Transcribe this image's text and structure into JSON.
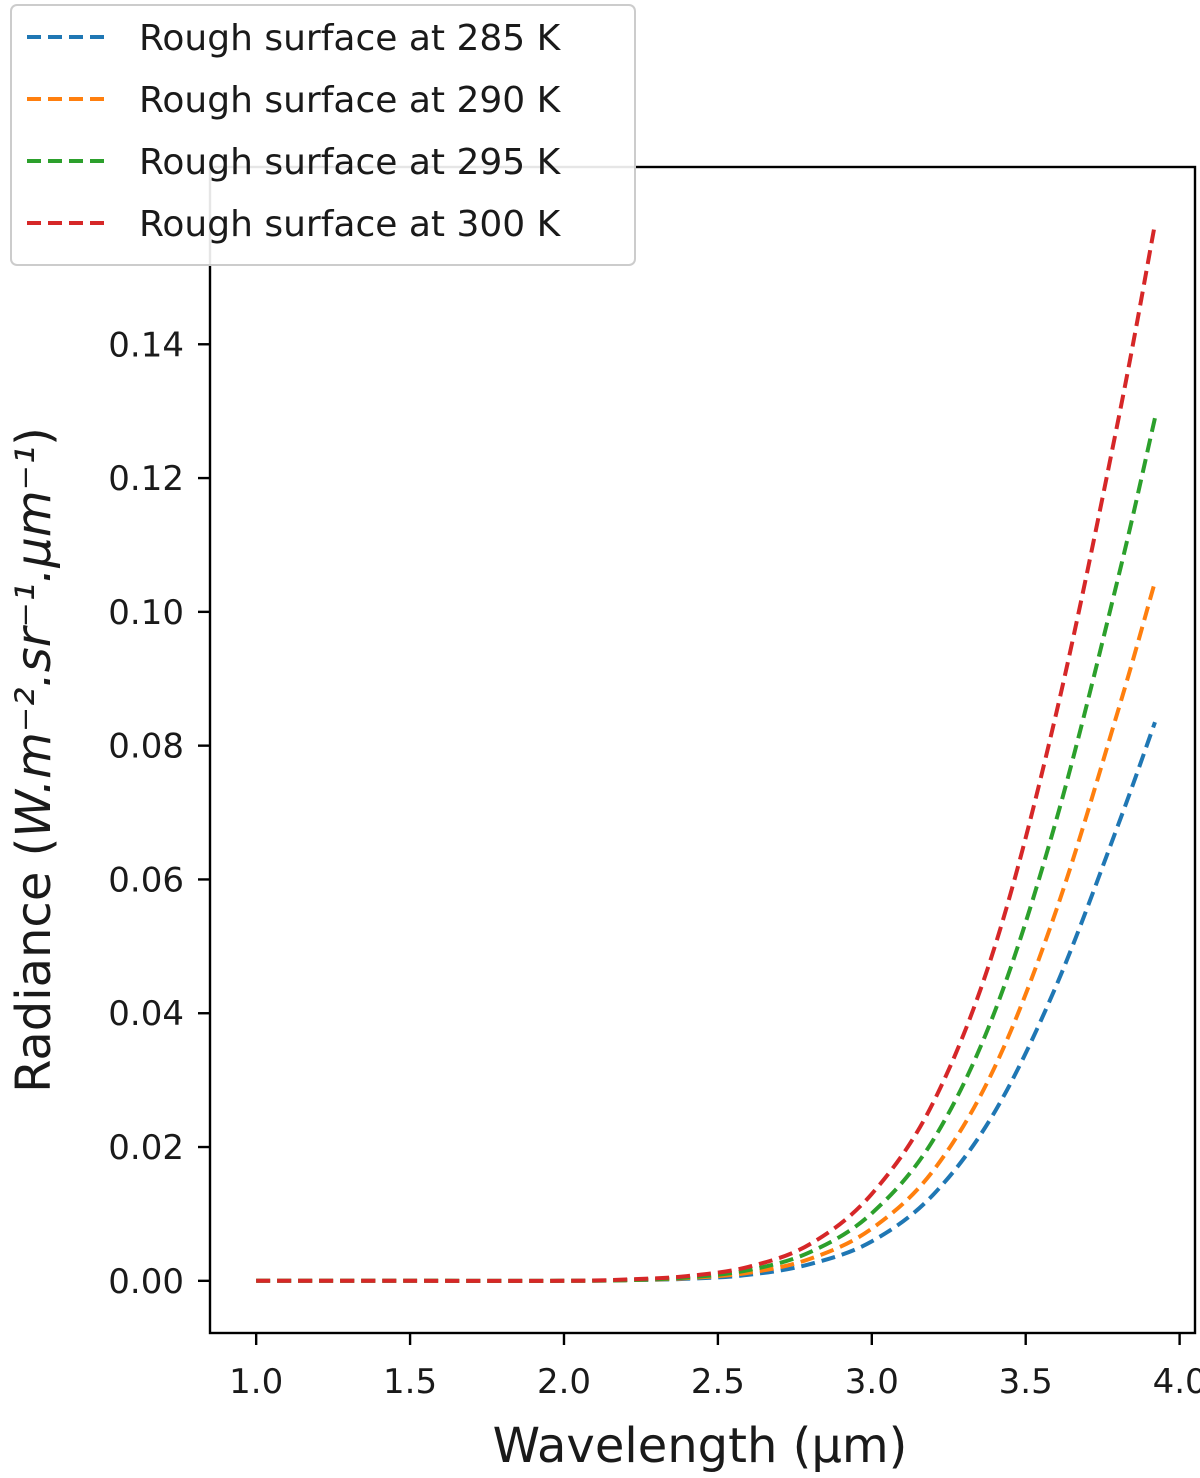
{
  "chart_data": {
    "type": "line",
    "xlabel": "Wavelength (µm)",
    "ylabel_prefix": "Radiance (",
    "ylabel_units": "W.m⁻².sr⁻¹.µm⁻¹",
    "ylabel_suffix": ")",
    "xlim": [
      0.85,
      4.05
    ],
    "ylim": [
      -0.0078,
      0.1665
    ],
    "xticks": [
      1.0,
      1.5,
      2.0,
      2.5,
      3.0,
      3.5,
      4.0
    ],
    "xtick_labels": [
      "1.0",
      "1.5",
      "2.0",
      "2.5",
      "3.0",
      "3.5",
      "4.0"
    ],
    "yticks": [
      0.0,
      0.02,
      0.04,
      0.06,
      0.08,
      0.1,
      0.12,
      0.14
    ],
    "ytick_labels": [
      "0.00",
      "0.02",
      "0.04",
      "0.06",
      "0.08",
      "0.10",
      "0.12",
      "0.14"
    ],
    "grid": false,
    "legend_position": "top-left",
    "line_style": "dashed",
    "x": [
      1.0,
      1.5,
      2.0,
      2.2,
      2.4,
      2.6,
      2.8,
      3.0,
      3.2,
      3.4,
      3.6,
      3.8,
      3.92
    ],
    "series": [
      {
        "name": "Rough surface at 285 K",
        "color": "#1f77b4",
        "values": [
          0.0,
          0.0,
          0.0,
          0.0001,
          0.0003,
          0.0009,
          0.0025,
          0.0059,
          0.0129,
          0.0253,
          0.0442,
          0.0681,
          0.0835
        ]
      },
      {
        "name": "Rough surface at 290 K",
        "color": "#ff7f0e",
        "values": [
          0.0,
          0.0,
          0.0,
          0.0001,
          0.0004,
          0.0012,
          0.0033,
          0.0078,
          0.0165,
          0.032,
          0.0555,
          0.0852,
          0.1045
        ]
      },
      {
        "name": "Rough surface at 295 K",
        "color": "#2ca02c",
        "values": [
          0.0,
          0.0,
          0.0,
          0.0001,
          0.0005,
          0.0016,
          0.0043,
          0.0101,
          0.0211,
          0.0403,
          0.069,
          0.105,
          0.129
        ]
      },
      {
        "name": "Rough surface at 300 K",
        "color": "#d62728",
        "values": [
          0.0,
          0.0,
          0.0,
          0.0002,
          0.0007,
          0.0021,
          0.0055,
          0.013,
          0.0267,
          0.05,
          0.085,
          0.1285,
          0.158
        ]
      }
    ]
  }
}
